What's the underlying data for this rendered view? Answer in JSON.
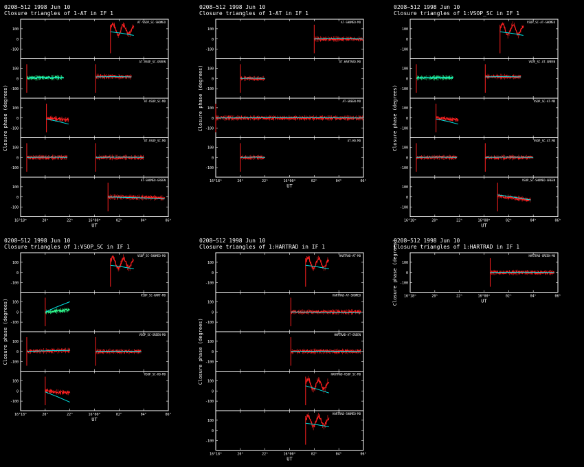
{
  "colors": {
    "background": "#000000",
    "axis": "#ffffff",
    "data": "#ff2020",
    "model": "#00e5e5",
    "alt_data": "#30ff90"
  },
  "common": {
    "xlabel": "UT",
    "ylabel": "Closure phase   (degrees)",
    "x_ticks": [
      "16°18ᵐ",
      "20ʰ",
      "22ʰ",
      "16°00ᵐ",
      "02ʰ",
      "04ʰ",
      "06ʰ"
    ],
    "x_tick_pos": [
      18,
      20,
      22,
      24,
      26,
      28,
      30
    ],
    "xlim": [
      18,
      30
    ],
    "ylim": [
      -180,
      180
    ],
    "y_ticks": [
      "100",
      "0",
      "-100"
    ]
  },
  "chart_data": [
    {
      "type": "scatter",
      "header1": "0208−512   1998 Jun 10",
      "header2": "Closure triangles of 1-AT in IF 1",
      "panels": [
        {
          "label": "AT-VSOP_SC-SHOMEO",
          "segments": [
            {
              "x": [
                25.3,
                27.2
              ],
              "color": "data",
              "shape": "wild",
              "y0": 90,
              "y1": 60,
              "model": [
                70,
                35
              ]
            }
          ]
        },
        {
          "label": "AT-VSOP_SC-GREEN",
          "segments": [
            {
              "x": [
                18.5,
                21.5
              ],
              "color": "alt_data",
              "y0": 5,
              "y1": 10,
              "model": [
                5,
                8
              ]
            },
            {
              "x": [
                24.1,
                27.0
              ],
              "color": "data",
              "y0": 20,
              "y1": 15,
              "model": [
                15,
                15
              ]
            }
          ]
        },
        {
          "label": "AT-VSOP_SC-MD",
          "segments": [
            {
              "x": [
                20.1,
                21.9
              ],
              "color": "data",
              "y0": 0,
              "y1": -20,
              "model": [
                -10,
                -60
              ]
            }
          ]
        },
        {
          "label": "AT-VSOP_SC-MO",
          "segments": [
            {
              "x": [
                18.5,
                21.8
              ],
              "color": "data",
              "y0": 0,
              "y1": 0,
              "model": [
                0,
                0
              ]
            },
            {
              "x": [
                24.1,
                28.0
              ],
              "color": "data",
              "y0": 0,
              "y1": 0,
              "model": [
                0,
                0
              ]
            }
          ]
        },
        {
          "label": "AT-SHOMEO-GREEN",
          "segments": [
            {
              "x": [
                25.1,
                29.7
              ],
              "color": "data",
              "y0": 0,
              "y1": -10,
              "model": [
                0,
                -20
              ]
            }
          ]
        }
      ]
    },
    {
      "type": "scatter",
      "header1": "0208−512   1998 Jun 10",
      "header2": "Closure triangles of 1-AT in IF 1",
      "panels": [
        {
          "label": "AT-SHOMEO-MO",
          "segments": [
            {
              "x": [
                26.0,
                30.0
              ],
              "color": "data",
              "y0": 0,
              "y1": 0,
              "model": [
                0,
                0
              ]
            }
          ]
        },
        {
          "label": "AT-HARTRAD-MO",
          "segments": [
            {
              "x": [
                20.0,
                22.0
              ],
              "color": "data",
              "y0": 0,
              "y1": 0,
              "model": [
                0,
                0
              ]
            }
          ]
        },
        {
          "label": "AT-GREEN-MO",
          "segments": [
            {
              "x": [
                18.0,
                30.0
              ],
              "color": "data",
              "y0": 0,
              "y1": 0,
              "model": [
                0,
                0
              ]
            }
          ]
        },
        {
          "label": "AT-HO-MO",
          "segments": [
            {
              "x": [
                20.0,
                22.0
              ],
              "color": "data",
              "y0": 0,
              "y1": 0,
              "model": [
                0,
                0
              ]
            }
          ]
        }
      ]
    },
    {
      "type": "scatter",
      "header1": "0208−512   1998 Jun 10",
      "header2": "Closure triangles of 1:VSOP_SC in IF 1",
      "panels": [
        {
          "label": "VSOP_SC-AT-SHOMEO",
          "segments": [
            {
              "x": [
                25.3,
                27.2
              ],
              "color": "data",
              "shape": "wild",
              "y0": 90,
              "y1": 60,
              "model": [
                70,
                35
              ]
            }
          ]
        },
        {
          "label": "VSOP_SC-AT-GREEN",
          "segments": [
            {
              "x": [
                18.5,
                21.5
              ],
              "color": "alt_data",
              "y0": 5,
              "y1": 10,
              "model": [
                5,
                8
              ]
            },
            {
              "x": [
                24.1,
                27.0
              ],
              "color": "data",
              "y0": 20,
              "y1": 15,
              "model": [
                15,
                15
              ]
            }
          ]
        },
        {
          "label": "VSOP_SC-AT-MD",
          "segments": [
            {
              "x": [
                20.1,
                21.9
              ],
              "color": "data",
              "y0": 0,
              "y1": -20,
              "model": [
                -10,
                -60
              ]
            }
          ]
        },
        {
          "label": "VSOP_SC-AT-MO",
          "segments": [
            {
              "x": [
                18.5,
                21.8
              ],
              "color": "data",
              "y0": 0,
              "y1": 0,
              "model": [
                0,
                0
              ]
            },
            {
              "x": [
                24.1,
                28.0
              ],
              "color": "data",
              "y0": 0,
              "y1": 0,
              "model": [
                0,
                0
              ]
            }
          ]
        },
        {
          "label": "VSOP_SC-SHOMEO-GREEN",
          "segments": [
            {
              "x": [
                25.1,
                27.8
              ],
              "color": "data",
              "y0": 10,
              "y1": -30,
              "model": [
                20,
                -30
              ]
            }
          ]
        }
      ]
    },
    {
      "type": "scatter",
      "header1": "0208−512   1998 Jun 10",
      "header2": "Closure triangles of 1:VSOP_SC in IF 1",
      "panels": [
        {
          "label": "VSOP_SC-SHOMEO-MO",
          "segments": [
            {
              "x": [
                25.3,
                27.2
              ],
              "color": "data",
              "shape": "wild",
              "y0": 90,
              "y1": 60,
              "model": [
                70,
                35
              ]
            }
          ]
        },
        {
          "label": "VSOP_SC-HART-MO",
          "segments": [
            {
              "x": [
                20.0,
                22.0
              ],
              "color": "alt_data",
              "y0": 0,
              "y1": 20,
              "model": [
                0,
                100
              ]
            }
          ]
        },
        {
          "label": "VSOP_SC-GREEN-MO",
          "segments": [
            {
              "x": [
                18.5,
                22.0
              ],
              "color": "data",
              "y0": 0,
              "y1": 10,
              "model": [
                0,
                10
              ]
            },
            {
              "x": [
                24.1,
                27.8
              ],
              "color": "data",
              "y0": 0,
              "y1": 0,
              "model": [
                0,
                0
              ]
            }
          ]
        },
        {
          "label": "VSOP_SC-HO-MO",
          "segments": [
            {
              "x": [
                20.0,
                22.0
              ],
              "color": "data",
              "y0": 0,
              "y1": -20,
              "model": [
                -10,
                -110
              ]
            }
          ]
        }
      ]
    },
    {
      "type": "scatter",
      "header1": "0208−512   1998 Jun 10",
      "header2": "Closure triangles of 1:HARTRAD in IF 1",
      "panels": [
        {
          "label": "HARTRAD-AT-MO",
          "segments": [
            {
              "x": [
                25.3,
                27.2
              ],
              "color": "data",
              "shape": "wild",
              "y0": 90,
              "y1": 60,
              "model": [
                70,
                35
              ]
            }
          ]
        },
        {
          "label": "HARTRAD-AT-SHOMEO",
          "segments": [
            {
              "x": [
                24.1,
                29.8
              ],
              "color": "data",
              "y0": 0,
              "y1": 0,
              "model": [
                0,
                -10
              ]
            }
          ]
        },
        {
          "label": "HARTRAD-AT-GREEN",
          "segments": [
            {
              "x": [
                24.1,
                29.8
              ],
              "color": "data",
              "y0": 0,
              "y1": 0,
              "model": [
                0,
                0
              ]
            }
          ]
        },
        {
          "label": "HARTRAD-VSOP_SC-MO",
          "segments": [
            {
              "x": [
                25.3,
                27.2
              ],
              "color": "data",
              "shape": "wild",
              "y0": 60,
              "y1": 40,
              "model": [
                50,
                -20
              ]
            }
          ]
        },
        {
          "label": "HARTRAD-SHOMEO-MO",
          "segments": [
            {
              "x": [
                25.3,
                27.2
              ],
              "color": "data",
              "shape": "wild",
              "y0": 90,
              "y1": 60,
              "model": [
                70,
                35
              ]
            }
          ]
        }
      ]
    },
    {
      "type": "scatter",
      "header1": "0208−512   1998 Jun 10",
      "header2": "Closure triangles of 1:HARTRAD in IF 1",
      "panels": [
        {
          "label": "HARTRAD-GREEN-MO",
          "segments": [
            {
              "x": [
                24.5,
                29.7
              ],
              "color": "data",
              "y0": 0,
              "y1": 0,
              "model": [
                0,
                0
              ]
            }
          ]
        }
      ]
    }
  ]
}
